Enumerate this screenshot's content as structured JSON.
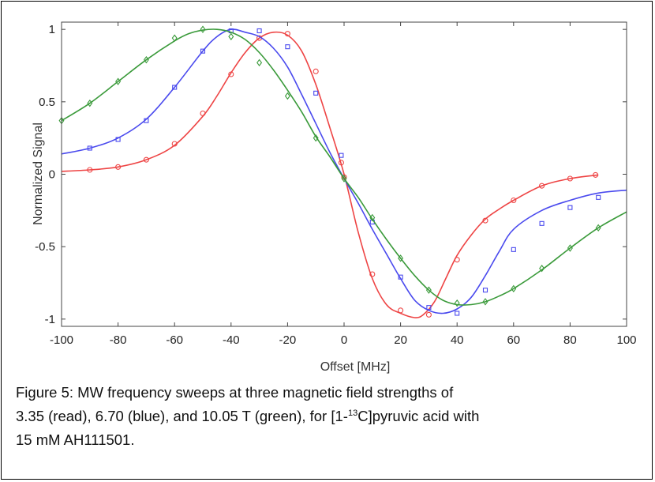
{
  "chart_data": {
    "type": "line",
    "title": "",
    "xlabel": "Offset [MHz]",
    "ylabel": "Normalized Signal",
    "xlim": [
      -100,
      100
    ],
    "ylim": [
      -1.05,
      1.05
    ],
    "xticks": [
      -100,
      -80,
      -60,
      -40,
      -20,
      0,
      20,
      40,
      60,
      80,
      100
    ],
    "yticks": [
      1,
      0.5,
      0,
      -0.5,
      -1
    ],
    "ytick_labels": [
      "1",
      "0.5",
      "0",
      "-0.5",
      "-1"
    ],
    "grid": false,
    "legend": "none",
    "series": [
      {
        "color": "#ee4444",
        "marker": "circle",
        "curve_x": [
          -100,
          -90,
          -80,
          -70,
          -60,
          -50,
          -45,
          -40,
          -35,
          -30,
          -25,
          -20,
          -15,
          -10,
          -5,
          0,
          5,
          10,
          15,
          20,
          25,
          28,
          32,
          36,
          40,
          45,
          50,
          55,
          60,
          70,
          80,
          90
        ],
        "curve_y": [
          0.02,
          0.03,
          0.05,
          0.1,
          0.2,
          0.4,
          0.54,
          0.7,
          0.84,
          0.94,
          0.98,
          0.96,
          0.85,
          0.62,
          0.32,
          0.0,
          -0.4,
          -0.72,
          -0.9,
          -0.96,
          -0.99,
          -0.97,
          -0.88,
          -0.72,
          -0.56,
          -0.42,
          -0.31,
          -0.24,
          -0.18,
          -0.08,
          -0.03,
          -0.005
        ],
        "markers_x": [
          -90,
          -80,
          -70,
          -60,
          -50,
          -40,
          -30,
          -20,
          -10,
          -1,
          0,
          10,
          20,
          30,
          40,
          50,
          60,
          70,
          80,
          89
        ],
        "markers_y": [
          0.03,
          0.05,
          0.1,
          0.21,
          0.42,
          0.69,
          0.94,
          0.97,
          0.71,
          0.08,
          -0.02,
          -0.69,
          -0.94,
          -0.97,
          -0.59,
          -0.32,
          -0.18,
          -0.08,
          -0.03,
          -0.005
        ]
      },
      {
        "color": "#4a4aee",
        "marker": "square",
        "curve_x": [
          -100,
          -90,
          -80,
          -70,
          -60,
          -50,
          -45,
          -40,
          -35,
          -30,
          -25,
          -20,
          -15,
          -10,
          -5,
          0,
          5,
          10,
          15,
          20,
          25,
          30,
          35,
          40,
          45,
          50,
          55,
          60,
          70,
          80,
          90,
          100
        ],
        "curve_y": [
          0.14,
          0.18,
          0.25,
          0.38,
          0.6,
          0.85,
          0.95,
          1.0,
          0.98,
          0.95,
          0.87,
          0.74,
          0.55,
          0.35,
          0.15,
          -0.03,
          -0.2,
          -0.38,
          -0.55,
          -0.72,
          -0.87,
          -0.94,
          -0.96,
          -0.93,
          -0.85,
          -0.7,
          -0.53,
          -0.38,
          -0.25,
          -0.18,
          -0.13,
          -0.11
        ],
        "markers_x": [
          -90,
          -80,
          -70,
          -60,
          -50,
          -40,
          -30,
          -20,
          -10,
          -1,
          10,
          20,
          30,
          40,
          50,
          60,
          70,
          80,
          90
        ],
        "markers_y": [
          0.18,
          0.24,
          0.37,
          0.6,
          0.85,
          0.99,
          0.99,
          0.88,
          0.56,
          0.13,
          -0.33,
          -0.71,
          -0.92,
          -0.96,
          -0.8,
          -0.52,
          -0.34,
          -0.23,
          -0.16
        ]
      },
      {
        "color": "#3a9a3a",
        "marker": "diamond",
        "curve_x": [
          -100,
          -90,
          -80,
          -70,
          -60,
          -55,
          -50,
          -45,
          -40,
          -35,
          -30,
          -25,
          -20,
          -15,
          -10,
          -5,
          0,
          5,
          10,
          15,
          20,
          25,
          30,
          35,
          40,
          45,
          50,
          55,
          60,
          70,
          80,
          90,
          100
        ],
        "curve_y": [
          0.37,
          0.49,
          0.64,
          0.79,
          0.92,
          0.97,
          0.995,
          1.0,
          0.98,
          0.93,
          0.84,
          0.72,
          0.58,
          0.43,
          0.26,
          0.12,
          -0.03,
          -0.16,
          -0.31,
          -0.45,
          -0.58,
          -0.7,
          -0.8,
          -0.87,
          -0.9,
          -0.9,
          -0.88,
          -0.84,
          -0.79,
          -0.66,
          -0.51,
          -0.37,
          -0.26
        ],
        "markers_x": [
          -100,
          -90,
          -80,
          -70,
          -60,
          -50,
          -40,
          -30,
          -20,
          -10,
          0,
          10,
          20,
          30,
          40,
          50,
          60,
          70,
          80,
          90
        ],
        "markers_y": [
          0.37,
          0.49,
          0.64,
          0.79,
          0.94,
          1.0,
          0.95,
          0.77,
          0.54,
          0.25,
          -0.03,
          -0.3,
          -0.58,
          -0.8,
          -0.89,
          -0.88,
          -0.79,
          -0.65,
          -0.51,
          -0.37
        ]
      }
    ]
  },
  "caption": {
    "line1": "Figure 5: MW frequency sweeps at three magnetic field strengths of",
    "line2_a": "3.35 (read), 6.70 (blue), and 10.05 T (green), for [1-",
    "line2_sup": "13",
    "line2_b": "C]pyruvic acid with",
    "line3": "15 mM AH111501."
  }
}
